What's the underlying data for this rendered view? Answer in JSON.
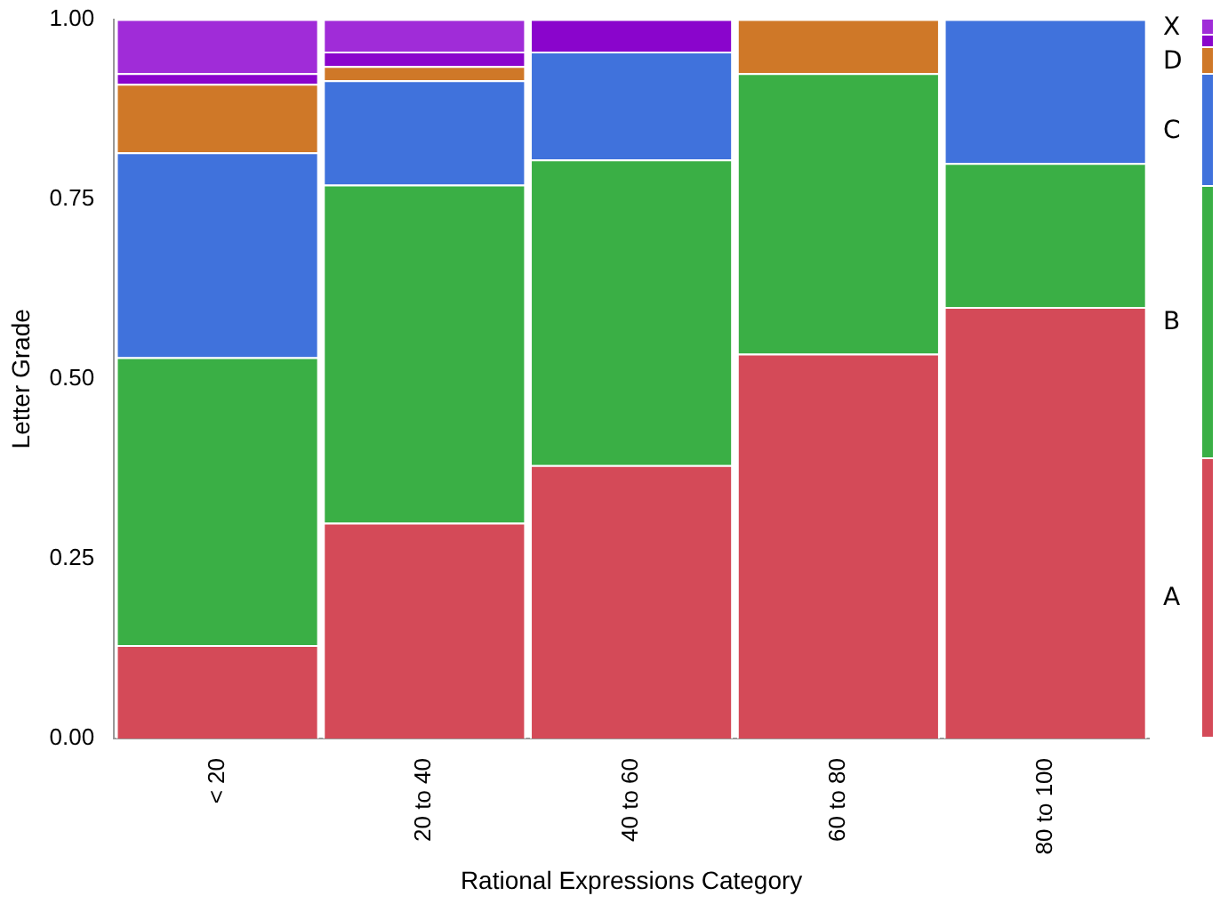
{
  "chart_data": {
    "type": "bar",
    "stacked": true,
    "xlabel": "Rational Expressions Category",
    "ylabel": "Letter Grade",
    "categories": [
      "< 20",
      "20 to 40",
      "40 to 60",
      "60 to 80",
      "80 to 100"
    ],
    "series": [
      {
        "name": "A",
        "color": "#d44a58",
        "values": [
          0.13,
          0.3,
          0.38,
          0.535,
          0.6
        ]
      },
      {
        "name": "B",
        "color": "#3aaf45",
        "values": [
          0.4,
          0.47,
          0.425,
          0.39,
          0.2
        ]
      },
      {
        "name": "C",
        "color": "#4072dc",
        "values": [
          0.285,
          0.145,
          0.15,
          null,
          0.2
        ]
      },
      {
        "name": "D",
        "color": "#cf7828",
        "values": [
          0.095,
          0.02,
          null,
          0.075,
          null
        ]
      },
      {
        "color": "#8a05cc",
        "values": [
          0.015,
          0.02,
          0.045,
          null,
          null
        ]
      },
      {
        "name": "X",
        "color": "#a02cd8",
        "values": [
          0.075,
          0.045,
          null,
          null,
          null
        ]
      }
    ],
    "ylim": [
      0,
      1
    ],
    "yticks": [
      {
        "value": 0,
        "label": "0.00"
      },
      {
        "value": 0.25,
        "label": "0.25"
      },
      {
        "value": 0.5,
        "label": "0.50"
      },
      {
        "value": 0.75,
        "label": "0.75"
      },
      {
        "value": 1,
        "label": "1.00"
      }
    ],
    "grid": false,
    "legend": "right"
  }
}
